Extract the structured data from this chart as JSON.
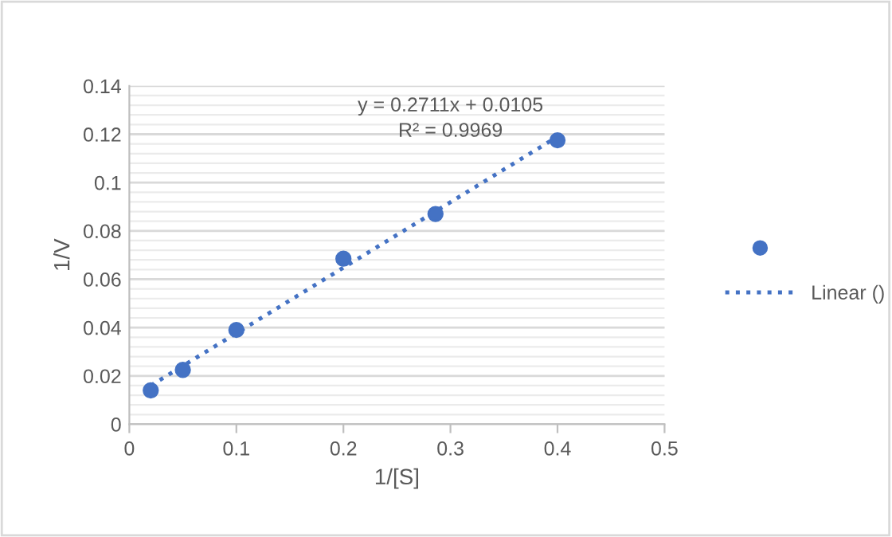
{
  "chart_data": {
    "type": "scatter",
    "xlabel": "1/[S]",
    "ylabel": "1/V",
    "series": [
      {
        "color": "#4472c4",
        "x": [
          0.02,
          0.05,
          0.1,
          0.2,
          0.286,
          0.4
        ],
        "values": [
          0.014,
          0.0225,
          0.039,
          0.0685,
          0.087,
          0.1175
        ],
        "marker": "circle"
      },
      {
        "type": "line",
        "name": "Linear ()",
        "color": "#4472c4",
        "x": [
          0.02,
          0.4
        ],
        "values": [
          0.016,
          0.119
        ],
        "line_style": "dotted",
        "marker": "none"
      }
    ],
    "annotations": [
      "y = 0.2711x + 0.0105",
      "R² = 0.9969"
    ],
    "xlim": [
      0,
      0.5
    ],
    "xticks": [
      0,
      0.1,
      0.2,
      0.3,
      0.4,
      0.5
    ],
    "ylim": [
      0,
      0.14
    ],
    "yticks": [
      0,
      0.02,
      0.04,
      0.06,
      0.08,
      0.1,
      0.12,
      0.14
    ],
    "grid": "y",
    "legend": "right"
  }
}
